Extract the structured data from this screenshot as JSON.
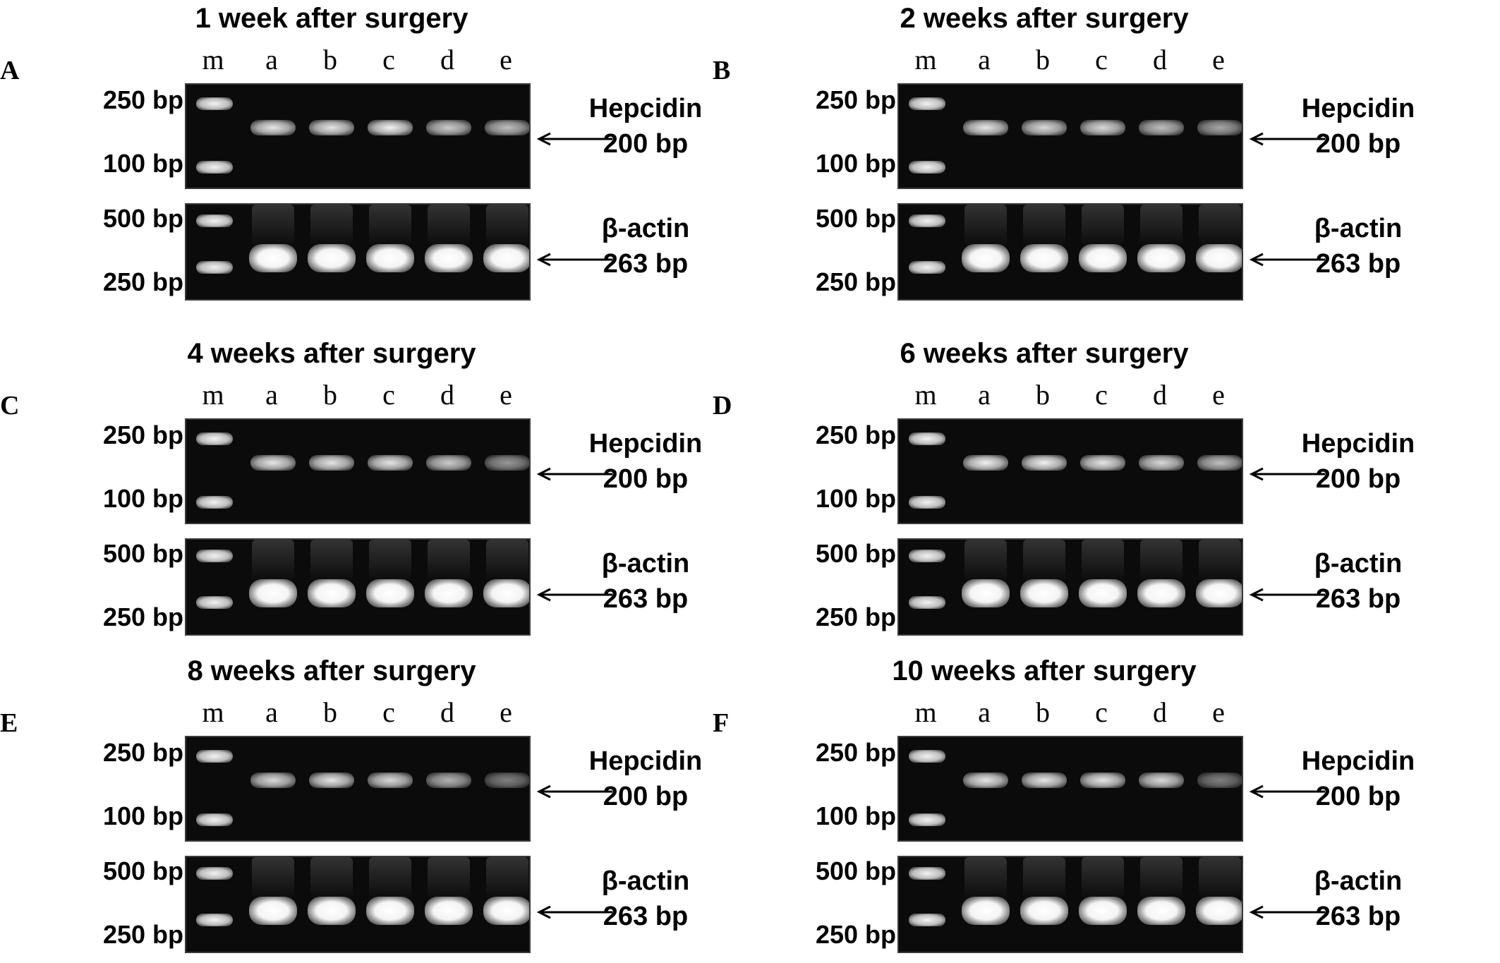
{
  "panels": [
    {
      "letter": "A",
      "title": "1 week after surgery"
    },
    {
      "letter": "B",
      "title": "2 weeks after surgery"
    },
    {
      "letter": "C",
      "title": "4 weeks after surgery"
    },
    {
      "letter": "D",
      "title": "6 weeks after surgery"
    },
    {
      "letter": "E",
      "title": "8 weeks after surgery"
    },
    {
      "letter": "F",
      "title": "10 weeks after surgery"
    }
  ],
  "lanes": [
    "m",
    "a",
    "b",
    "c",
    "d",
    "e"
  ],
  "top_gel": {
    "marker_high": "250 bp",
    "marker_low": "100 bp",
    "gene": "Hepcidin",
    "size": "200 bp"
  },
  "bottom_gel": {
    "marker_high": "500 bp",
    "marker_low": "250 bp",
    "gene": "β-actin",
    "size": "263 bp"
  }
}
